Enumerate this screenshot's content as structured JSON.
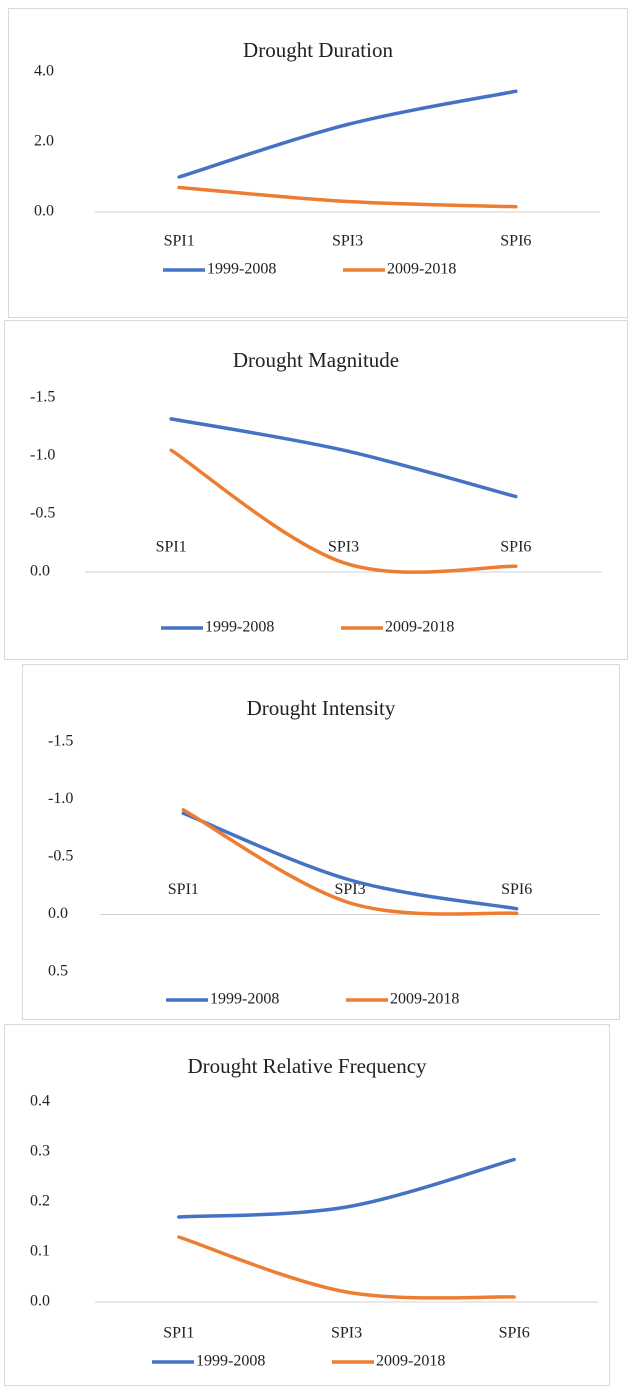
{
  "chart_data": [
    {
      "type": "line",
      "title": "Drought Duration",
      "categories": [
        "SPI1",
        "SPI3",
        "SPI6"
      ],
      "series": [
        {
          "name": "1999-2008",
          "color": "#4472c4",
          "values": [
            1.0,
            2.5,
            3.45
          ]
        },
        {
          "name": "2009-2018",
          "color": "#ed7d31",
          "values": [
            0.7,
            0.3,
            0.15
          ]
        }
      ],
      "ylim": [
        0,
        4
      ],
      "yticks": [
        {
          "value": 0,
          "label": "0.0"
        },
        {
          "value": 2,
          "label": "2.0"
        },
        {
          "value": 4,
          "label": "4.0"
        }
      ],
      "smooth": true,
      "legend": "bottom"
    },
    {
      "type": "line",
      "title": "Drought Magnitude",
      "categories": [
        "SPI1",
        "SPI3",
        "SPI6"
      ],
      "series": [
        {
          "name": "1999-2008",
          "color": "#4472c4",
          "values": [
            -1.32,
            -1.05,
            -0.65
          ]
        },
        {
          "name": "2009-2018",
          "color": "#ed7d31",
          "values": [
            -1.05,
            -0.08,
            -0.05
          ]
        }
      ],
      "ylim": [
        0,
        -1.5
      ],
      "yticks": [
        {
          "value": 0,
          "label": "0.0"
        },
        {
          "value": -0.5,
          "label": "-0.5"
        },
        {
          "value": -1,
          "label": "-1.0"
        },
        {
          "value": -1.5,
          "label": "-1.5"
        }
      ],
      "smooth": true,
      "legend": "bottom"
    },
    {
      "type": "line",
      "title": "Drought Intensity",
      "categories": [
        "SPI1",
        "SPI3",
        "SPI6"
      ],
      "series": [
        {
          "name": "1999-2008",
          "color": "#4472c4",
          "values": [
            -0.88,
            -0.3,
            -0.05
          ]
        },
        {
          "name": "2009-2018",
          "color": "#ed7d31",
          "values": [
            -0.91,
            -0.1,
            -0.01
          ]
        }
      ],
      "ylim": [
        0.5,
        -1.5
      ],
      "yticks": [
        {
          "value": 0.5,
          "label": "0.5"
        },
        {
          "value": 0,
          "label": "0.0"
        },
        {
          "value": -0.5,
          "label": "-0.5"
        },
        {
          "value": -1,
          "label": "-1.0"
        },
        {
          "value": -1.5,
          "label": "-1.5"
        }
      ],
      "smooth": true,
      "legend": "bottom"
    },
    {
      "type": "line",
      "title": "Drought Relative Frequency",
      "categories": [
        "SPI1",
        "SPI3",
        "SPI6"
      ],
      "series": [
        {
          "name": "1999-2008",
          "color": "#4472c4",
          "values": [
            0.17,
            0.19,
            0.285
          ]
        },
        {
          "name": "2009-2018",
          "color": "#ed7d31",
          "values": [
            0.13,
            0.02,
            0.01
          ]
        }
      ],
      "ylim": [
        0,
        0.4
      ],
      "yticks": [
        {
          "value": 0,
          "label": "0.0"
        },
        0.1,
        0.2,
        0.3,
        0.4
      ],
      "smooth": true,
      "legend": "bottom"
    }
  ]
}
